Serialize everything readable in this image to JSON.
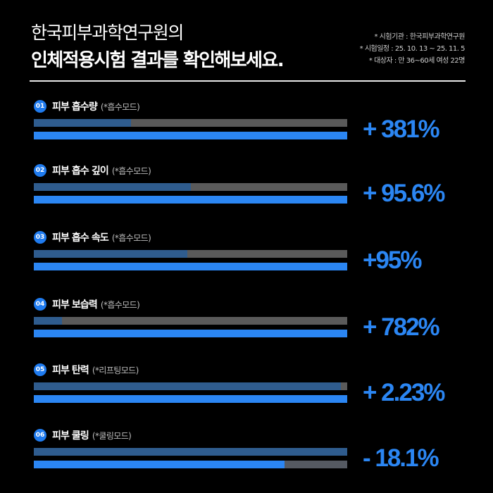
{
  "header": {
    "title_line1": "한국피부과학연구원의",
    "title_line2": "인체적용시험 결과를 확인해보세요.",
    "notes": [
      "* 시험기관 : 한국피부과학연구원",
      "* 시험일정 : 25. 10. 13 ~ 25. 11. 5",
      "* 대상자 : 만 36~60세 여성 22명"
    ]
  },
  "colors": {
    "accent": "#2b86f3",
    "before_fill": "#2f5c8e",
    "track": "#5a5a5a",
    "background": "#000000"
  },
  "chart_data": {
    "type": "bar",
    "orientation": "horizontal",
    "title": "인체적용시험 결과",
    "categories": [
      "피부 흡수량",
      "피부 흡수 깊이",
      "피부 흡수 속도",
      "피부 보습력",
      "피부 탄력",
      "피부 쿨링"
    ],
    "modes": [
      "(*흡수모드)",
      "(*흡수모드)",
      "(*흡수모드)",
      "(*흡수모드)",
      "(*리프팅모드)",
      "(*쿨링모드)"
    ],
    "value_labels": [
      "+ 381%",
      "+ 95.6%",
      "+95%",
      "+ 782%",
      "+ 2.23%",
      "- 18.1%"
    ],
    "series": [
      {
        "values": [
          0.31,
          0.5,
          0.49,
          0.09,
          0.98,
          1.0
        ]
      },
      {
        "values": [
          1.0,
          1.0,
          1.0,
          1.0,
          1.0,
          0.8
        ]
      }
    ],
    "grid": false
  },
  "items": [
    {
      "num": "01"
    },
    {
      "num": "02"
    },
    {
      "num": "03"
    },
    {
      "num": "04"
    },
    {
      "num": "05"
    },
    {
      "num": "06"
    }
  ]
}
